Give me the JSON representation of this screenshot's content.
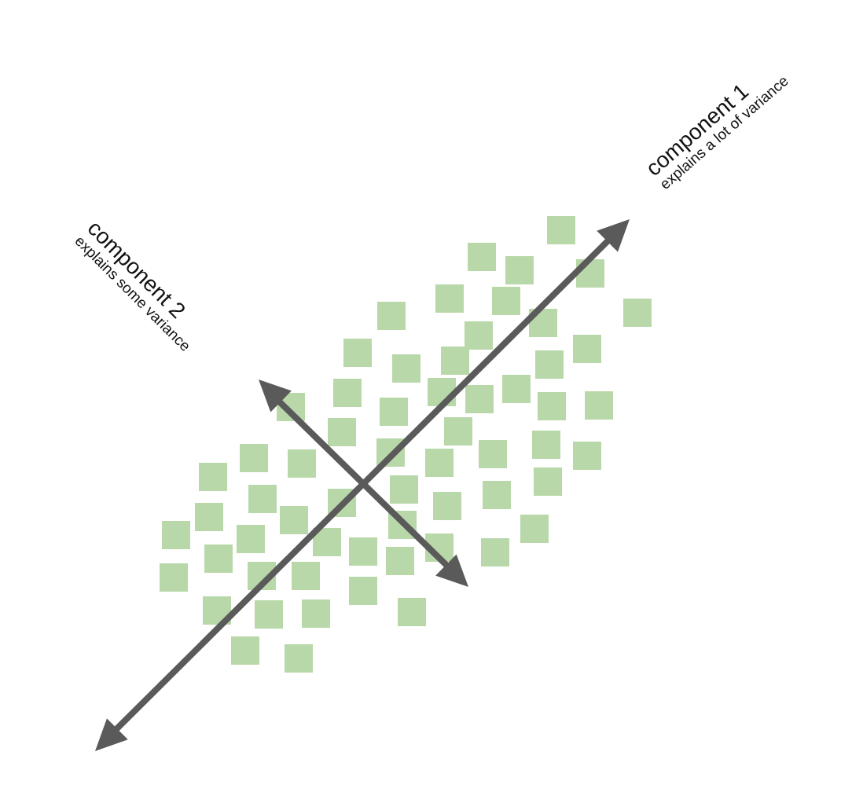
{
  "components": {
    "c1": {
      "title": "component 1",
      "subtitle": "explains a lot of variance"
    },
    "c2": {
      "title": "component 2",
      "subtitle": "explains some variance"
    }
  },
  "colors": {
    "points": "#b9d8a9",
    "arrows": "#5a5a5a",
    "text": "#111111",
    "background": "#ffffff"
  }
}
